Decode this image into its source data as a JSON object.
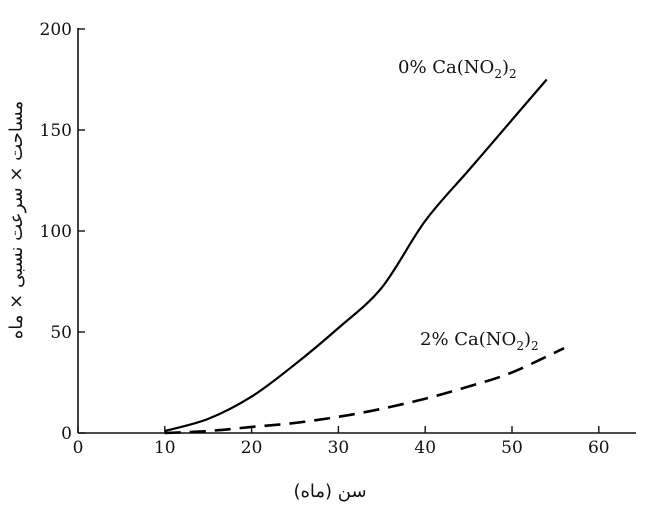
{
  "chart_data": {
    "type": "line",
    "xlabel": "سن (ماه)",
    "ylabel": "مساحت × سرعت نسبی × ماه",
    "xlim": [
      0,
      64
    ],
    "ylim": [
      0,
      200
    ],
    "xticks": [
      "0",
      "10",
      "20",
      "30",
      "40",
      "50",
      "60"
    ],
    "yticks": [
      "0",
      "50",
      "100",
      "150",
      "200"
    ],
    "grid": false,
    "series": [
      {
        "name": "0% Ca(NO2)2",
        "name_main": "0% Ca(NO",
        "name_sub1": "2",
        "name_mid": ")",
        "name_sub2": "2",
        "style": "solid",
        "x": [
          10,
          15,
          20,
          25,
          30,
          35,
          40,
          45,
          50,
          54
        ],
        "y": [
          1,
          7,
          18,
          34,
          52,
          72,
          105,
          130,
          155,
          175
        ]
      },
      {
        "name": "2% Ca(NO2)2",
        "name_main": "2% Ca(NO",
        "name_sub1": "2",
        "name_mid": ")",
        "name_sub2": "2",
        "style": "dashed",
        "x": [
          10,
          15,
          20,
          25,
          30,
          35,
          40,
          45,
          50,
          56
        ],
        "y": [
          0,
          1,
          3,
          5,
          8,
          12,
          17,
          23,
          30,
          42
        ]
      }
    ]
  }
}
